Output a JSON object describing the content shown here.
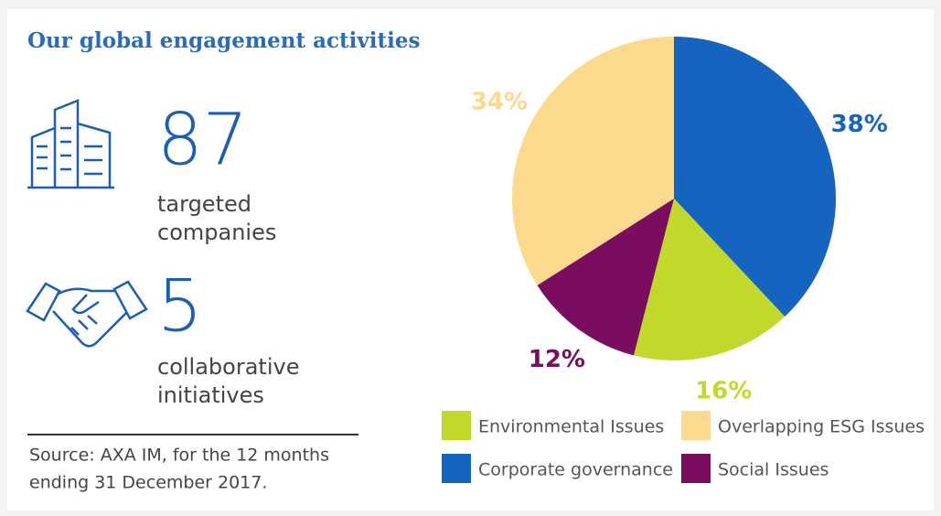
{
  "title": "Our global engagement activities",
  "stats": [
    {
      "value": 87,
      "label": [
        "targeted",
        "companies"
      ]
    },
    {
      "value": 5,
      "label": [
        "collaborative",
        "initiatives"
      ]
    }
  ],
  "source": [
    "Source: AXA IM, for the 12 months",
    "ending 31 December 2017."
  ],
  "chart_data": {
    "type": "pie",
    "categories": [
      "Corporate governance",
      "Environmental Issues",
      "Social Issues",
      "Overlapping ESG Issues"
    ],
    "values": [
      38,
      16,
      12,
      34
    ],
    "value_labels": [
      "38%",
      "16%",
      "12%",
      "34%"
    ],
    "colors": [
      "#1565c0",
      "#c2d92c",
      "#7a0d5f",
      "#fbd98d"
    ]
  }
}
